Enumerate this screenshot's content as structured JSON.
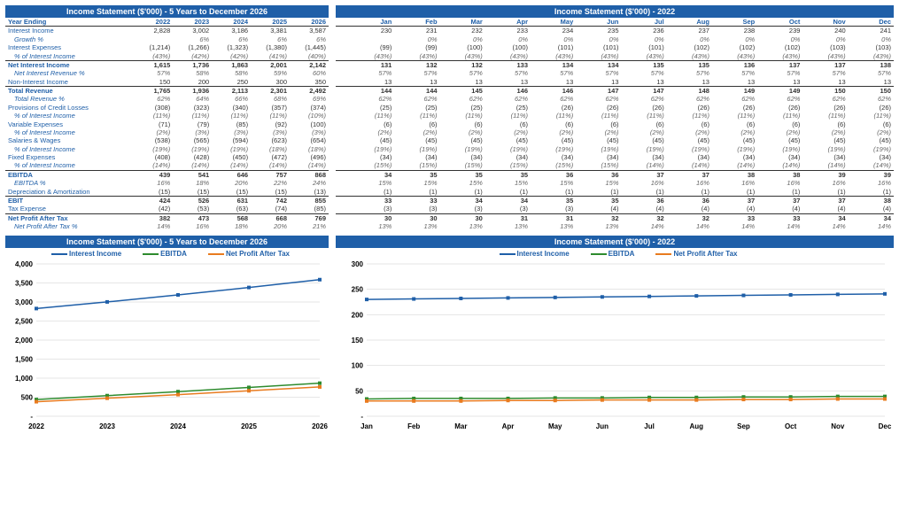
{
  "left": {
    "title": "Income Statement ($'000) - 5 Years to December 2026",
    "years": [
      "2022",
      "2023",
      "2024",
      "2025",
      "2026"
    ],
    "yearLabel": "Year Ending",
    "rows": [
      {
        "label": "Interest Income",
        "vals": [
          "2,828",
          "3,002",
          "3,186",
          "3,381",
          "3,587"
        ]
      },
      {
        "label": "Growth %",
        "vals": [
          "",
          "6%",
          "6%",
          "6%",
          "6%"
        ],
        "italic": true,
        "valClass": "italic-val"
      },
      {
        "label": "Interest Expenses",
        "vals": [
          "(1,214)",
          "(1,266)",
          "(1,323)",
          "(1,380)",
          "(1,445)"
        ]
      },
      {
        "label": "% of Interest Income",
        "vals": [
          "(43%)",
          "(42%)",
          "(42%)",
          "(41%)",
          "(40%)"
        ],
        "italic": true,
        "valClass": "italic-val"
      },
      {
        "label": "Net Interest Income",
        "vals": [
          "1,615",
          "1,736",
          "1,863",
          "2,001",
          "2,142"
        ],
        "bold": true,
        "topBorder": true
      },
      {
        "label": "Net Interest Revenue %",
        "vals": [
          "57%",
          "58%",
          "58%",
          "59%",
          "60%"
        ],
        "italic": true,
        "valClass": "italic-val"
      },
      {
        "label": "Non-Interest Income",
        "vals": [
          "150",
          "200",
          "250",
          "300",
          "350"
        ]
      },
      {
        "label": "Total Revenue",
        "vals": [
          "1,765",
          "1,936",
          "2,113",
          "2,301",
          "2,492"
        ],
        "bold": true,
        "topBorder": true
      },
      {
        "label": "Total Revenue %",
        "vals": [
          "62%",
          "64%",
          "66%",
          "68%",
          "69%"
        ],
        "italic": true,
        "valClass": "italic-val"
      },
      {
        "label": "Provisions of Credit Losses",
        "vals": [
          "(308)",
          "(323)",
          "(340)",
          "(357)",
          "(374)"
        ]
      },
      {
        "label": "% of Interest Income",
        "vals": [
          "(11%)",
          "(11%)",
          "(11%)",
          "(11%)",
          "(10%)"
        ],
        "italic": true,
        "valClass": "italic-val"
      },
      {
        "label": "Variable Expenses",
        "vals": [
          "(71)",
          "(79)",
          "(85)",
          "(92)",
          "(100)"
        ]
      },
      {
        "label": "% of Interest Income",
        "vals": [
          "(2%)",
          "(3%)",
          "(3%)",
          "(3%)",
          "(3%)"
        ],
        "italic": true,
        "valClass": "italic-val"
      },
      {
        "label": "Salaries & Wages",
        "vals": [
          "(538)",
          "(565)",
          "(594)",
          "(623)",
          "(654)"
        ]
      },
      {
        "label": "% of Interest Income",
        "vals": [
          "(19%)",
          "(19%)",
          "(19%)",
          "(18%)",
          "(18%)"
        ],
        "italic": true,
        "valClass": "italic-val"
      },
      {
        "label": "Fixed Expenses",
        "vals": [
          "(408)",
          "(428)",
          "(450)",
          "(472)",
          "(496)"
        ]
      },
      {
        "label": "% of Interest Income",
        "vals": [
          "(14%)",
          "(14%)",
          "(14%)",
          "(14%)",
          "(14%)"
        ],
        "italic": true,
        "valClass": "italic-val"
      },
      {
        "label": "EBITDA",
        "vals": [
          "439",
          "541",
          "646",
          "757",
          "868"
        ],
        "bold": true,
        "topBorder": true
      },
      {
        "label": "EBITDA %",
        "vals": [
          "16%",
          "18%",
          "20%",
          "22%",
          "24%"
        ],
        "italic": true,
        "valClass": "italic-val"
      },
      {
        "label": "Depreciation & Amortization",
        "vals": [
          "(15)",
          "(15)",
          "(15)",
          "(15)",
          "(13)"
        ]
      },
      {
        "label": "EBIT",
        "vals": [
          "424",
          "526",
          "631",
          "742",
          "855"
        ],
        "bold": true,
        "topBorder": true
      },
      {
        "label": "Tax Expense",
        "vals": [
          "(42)",
          "(53)",
          "(63)",
          "(74)",
          "(85)"
        ]
      },
      {
        "label": "Net Profit After Tax",
        "vals": [
          "382",
          "473",
          "568",
          "668",
          "769"
        ],
        "bold": true,
        "topBorder": true
      },
      {
        "label": "Net Profit After Tax %",
        "vals": [
          "14%",
          "16%",
          "18%",
          "20%",
          "21%"
        ],
        "italic": true,
        "valClass": "italic-val"
      }
    ]
  },
  "right": {
    "title": "Income Statement ($'000) - 2022",
    "months": [
      "Jan",
      "Feb",
      "Mar",
      "Apr",
      "May",
      "Jun",
      "Jul",
      "Aug",
      "Sep",
      "Oct",
      "Nov",
      "Dec"
    ],
    "rows": [
      {
        "vals": [
          "230",
          "231",
          "232",
          "233",
          "234",
          "235",
          "236",
          "237",
          "238",
          "239",
          "240",
          "241"
        ]
      },
      {
        "vals": [
          "",
          "0%",
          "0%",
          "0%",
          "0%",
          "0%",
          "0%",
          "0%",
          "0%",
          "0%",
          "0%",
          "0%"
        ],
        "italic": true,
        "valClass": "italic-val"
      },
      {
        "vals": [
          "(99)",
          "(99)",
          "(100)",
          "(100)",
          "(101)",
          "(101)",
          "(101)",
          "(102)",
          "(102)",
          "(102)",
          "(103)",
          "(103)"
        ]
      },
      {
        "vals": [
          "(43%)",
          "(43%)",
          "(43%)",
          "(43%)",
          "(43%)",
          "(43%)",
          "(43%)",
          "(43%)",
          "(43%)",
          "(43%)",
          "(43%)",
          "(43%)"
        ],
        "italic": true,
        "valClass": "italic-val"
      },
      {
        "vals": [
          "131",
          "132",
          "132",
          "133",
          "134",
          "134",
          "135",
          "135",
          "136",
          "137",
          "137",
          "138"
        ],
        "bold": true,
        "topBorder": true
      },
      {
        "vals": [
          "57%",
          "57%",
          "57%",
          "57%",
          "57%",
          "57%",
          "57%",
          "57%",
          "57%",
          "57%",
          "57%",
          "57%"
        ],
        "italic": true,
        "valClass": "italic-val"
      },
      {
        "vals": [
          "13",
          "13",
          "13",
          "13",
          "13",
          "13",
          "13",
          "13",
          "13",
          "13",
          "13",
          "13"
        ]
      },
      {
        "vals": [
          "144",
          "144",
          "145",
          "146",
          "146",
          "147",
          "147",
          "148",
          "149",
          "149",
          "150",
          "150"
        ],
        "bold": true,
        "topBorder": true
      },
      {
        "vals": [
          "62%",
          "62%",
          "62%",
          "62%",
          "62%",
          "62%",
          "62%",
          "62%",
          "62%",
          "62%",
          "62%",
          "62%"
        ],
        "italic": true,
        "valClass": "italic-val"
      },
      {
        "vals": [
          "(25)",
          "(25)",
          "(25)",
          "(25)",
          "(26)",
          "(26)",
          "(26)",
          "(26)",
          "(26)",
          "(26)",
          "(26)",
          "(26)"
        ]
      },
      {
        "vals": [
          "(11%)",
          "(11%)",
          "(11%)",
          "(11%)",
          "(11%)",
          "(11%)",
          "(11%)",
          "(11%)",
          "(11%)",
          "(11%)",
          "(11%)",
          "(11%)"
        ],
        "italic": true,
        "valClass": "italic-val"
      },
      {
        "vals": [
          "(6)",
          "(6)",
          "(6)",
          "(6)",
          "(6)",
          "(6)",
          "(6)",
          "(6)",
          "(6)",
          "(6)",
          "(6)",
          "(6)"
        ]
      },
      {
        "vals": [
          "(2%)",
          "(2%)",
          "(2%)",
          "(2%)",
          "(2%)",
          "(2%)",
          "(2%)",
          "(2%)",
          "(2%)",
          "(2%)",
          "(2%)",
          "(2%)"
        ],
        "italic": true,
        "valClass": "italic-val"
      },
      {
        "vals": [
          "(45)",
          "(45)",
          "(45)",
          "(45)",
          "(45)",
          "(45)",
          "(45)",
          "(45)",
          "(45)",
          "(45)",
          "(45)",
          "(45)"
        ]
      },
      {
        "vals": [
          "(19%)",
          "(19%)",
          "(19%)",
          "(19%)",
          "(19%)",
          "(19%)",
          "(19%)",
          "(19%)",
          "(19%)",
          "(19%)",
          "(19%)",
          "(19%)"
        ],
        "italic": true,
        "valClass": "italic-val"
      },
      {
        "vals": [
          "(34)",
          "(34)",
          "(34)",
          "(34)",
          "(34)",
          "(34)",
          "(34)",
          "(34)",
          "(34)",
          "(34)",
          "(34)",
          "(34)"
        ]
      },
      {
        "vals": [
          "(15%)",
          "(15%)",
          "(15%)",
          "(15%)",
          "(15%)",
          "(15%)",
          "(14%)",
          "(14%)",
          "(14%)",
          "(14%)",
          "(14%)",
          "(14%)"
        ],
        "italic": true,
        "valClass": "italic-val"
      },
      {
        "vals": [
          "34",
          "35",
          "35",
          "35",
          "36",
          "36",
          "37",
          "37",
          "38",
          "38",
          "39",
          "39"
        ],
        "bold": true,
        "topBorder": true
      },
      {
        "vals": [
          "15%",
          "15%",
          "15%",
          "15%",
          "15%",
          "15%",
          "16%",
          "16%",
          "16%",
          "16%",
          "16%",
          "16%"
        ],
        "italic": true,
        "valClass": "italic-val"
      },
      {
        "vals": [
          "(1)",
          "(1)",
          "(1)",
          "(1)",
          "(1)",
          "(1)",
          "(1)",
          "(1)",
          "(1)",
          "(1)",
          "(1)",
          "(1)"
        ]
      },
      {
        "vals": [
          "33",
          "33",
          "34",
          "34",
          "35",
          "35",
          "36",
          "36",
          "37",
          "37",
          "37",
          "38"
        ],
        "bold": true,
        "topBorder": true
      },
      {
        "vals": [
          "(3)",
          "(3)",
          "(3)",
          "(3)",
          "(3)",
          "(4)",
          "(4)",
          "(4)",
          "(4)",
          "(4)",
          "(4)",
          "(4)"
        ]
      },
      {
        "vals": [
          "30",
          "30",
          "30",
          "31",
          "31",
          "32",
          "32",
          "32",
          "33",
          "33",
          "34",
          "34"
        ],
        "bold": true,
        "topBorder": true
      },
      {
        "vals": [
          "13%",
          "13%",
          "13%",
          "13%",
          "13%",
          "13%",
          "14%",
          "14%",
          "14%",
          "14%",
          "14%",
          "14%"
        ],
        "italic": true,
        "valClass": "italic-val"
      }
    ]
  },
  "chartLeft": {
    "title": "Income Statement ($'000) - 5 Years to December 2026",
    "legend": [
      {
        "label": "Interest Income",
        "color": "#1f5fa8"
      },
      {
        "label": "EBITDA",
        "color": "#2e8b2e"
      },
      {
        "label": "Net Profit After Tax",
        "color": "#e87b1f"
      }
    ],
    "xLabels": [
      "2022",
      "2023",
      "2024",
      "2025",
      "2026"
    ],
    "yMax": 4000,
    "yStep": 500,
    "series": [
      {
        "color": "#1f5fa8",
        "vals": [
          2828,
          3002,
          3186,
          3381,
          3587
        ]
      },
      {
        "color": "#2e8b2e",
        "vals": [
          439,
          541,
          646,
          757,
          868
        ]
      },
      {
        "color": "#e87b1f",
        "vals": [
          382,
          473,
          568,
          668,
          769
        ]
      }
    ]
  },
  "chartRight": {
    "title": "Income Statement ($'000) - 2022",
    "legend": [
      {
        "label": "Interest Income",
        "color": "#1f5fa8"
      },
      {
        "label": "EBITDA",
        "color": "#2e8b2e"
      },
      {
        "label": "Net Profit After Tax",
        "color": "#e87b1f"
      }
    ],
    "xLabels": [
      "Jan",
      "Feb",
      "Mar",
      "Apr",
      "May",
      "Jun",
      "Jul",
      "Aug",
      "Sep",
      "Oct",
      "Nov",
      "Dec"
    ],
    "yMax": 300,
    "yStep": 50,
    "series": [
      {
        "color": "#1f5fa8",
        "vals": [
          230,
          231,
          232,
          233,
          234,
          235,
          236,
          237,
          238,
          239,
          240,
          241
        ]
      },
      {
        "color": "#2e8b2e",
        "vals": [
          34,
          35,
          35,
          35,
          36,
          36,
          37,
          37,
          38,
          38,
          39,
          39
        ]
      },
      {
        "color": "#e87b1f",
        "vals": [
          30,
          30,
          30,
          31,
          31,
          32,
          32,
          32,
          33,
          33,
          34,
          34
        ]
      }
    ]
  }
}
